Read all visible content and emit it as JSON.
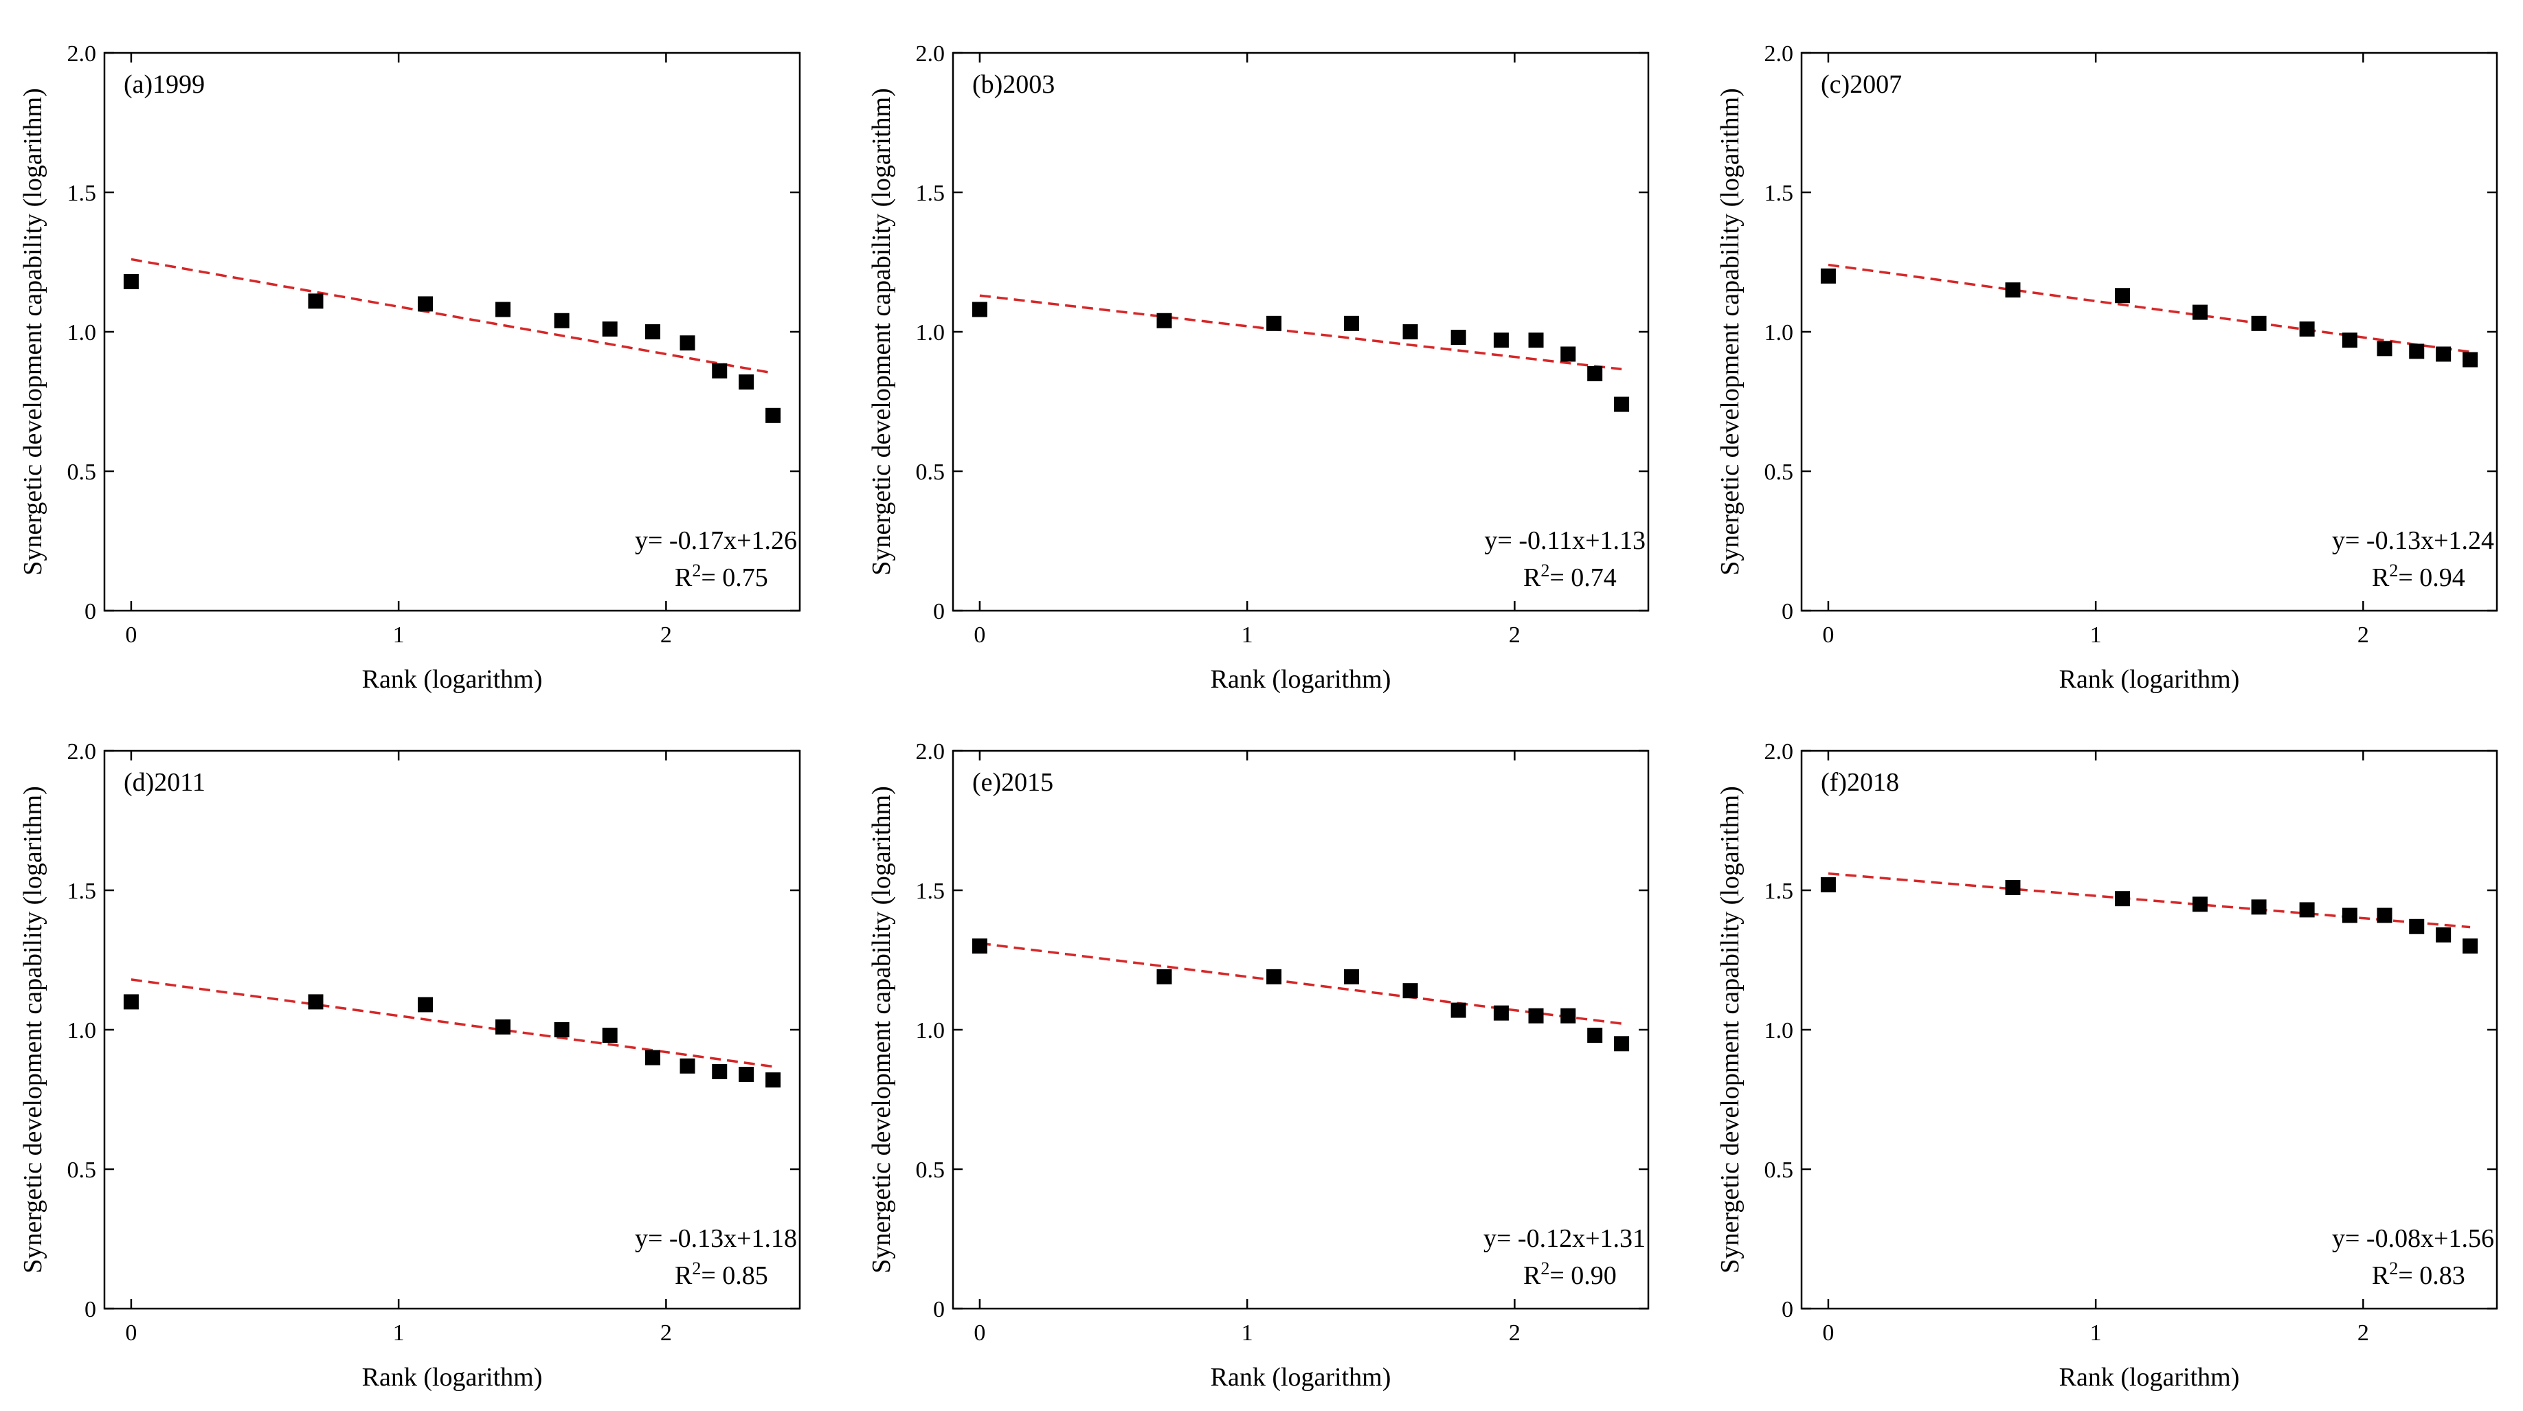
{
  "figure": {
    "x_axis_label": "Rank (logarithm)",
    "y_axis_label": "Synergetic development capability (logarithm)"
  },
  "chart_data": [
    {
      "type": "scatter",
      "panel_label": "(a)1999",
      "xlabel": "Rank (logarithm)",
      "ylabel": "Synergetic development capability (logarithm)",
      "xlim": [
        -0.1,
        2.5
      ],
      "ylim": [
        0,
        2.0
      ],
      "x_ticks": [
        0,
        1,
        2
      ],
      "y_ticks": [
        0,
        0.5,
        1.0,
        1.5,
        2.0
      ],
      "x_tick_labels": [
        "0",
        "1",
        "2"
      ],
      "y_tick_labels": [
        "0",
        "0.5",
        "1.0",
        "1.5",
        "2.0"
      ],
      "points_x": [
        0,
        0.69,
        1.1,
        1.39,
        1.61,
        1.79,
        1.95,
        2.08,
        2.2,
        2.3,
        2.4
      ],
      "points_y": [
        1.18,
        1.11,
        1.1,
        1.08,
        1.04,
        1.01,
        1.0,
        0.96,
        0.86,
        0.82,
        0.7
      ],
      "fit": {
        "slope": -0.17,
        "intercept": 1.26,
        "x_range": [
          0,
          2.4
        ]
      },
      "equation": "y= -0.17x+1.26",
      "r2_prefix": "R",
      "r2_sup": "2",
      "r2_value": "= 0.75",
      "fit_color": "#d62728",
      "marker_color": "#000000"
    },
    {
      "type": "scatter",
      "panel_label": "(b)2003",
      "xlabel": "Rank (logarithm)",
      "ylabel": "Synergetic development capability (logarithm)",
      "xlim": [
        -0.1,
        2.5
      ],
      "ylim": [
        0,
        2.0
      ],
      "x_ticks": [
        0,
        1,
        2
      ],
      "y_ticks": [
        0,
        0.5,
        1.0,
        1.5,
        2.0
      ],
      "x_tick_labels": [
        "0",
        "1",
        "2"
      ],
      "y_tick_labels": [
        "0",
        "0.5",
        "1.0",
        "1.5",
        "2.0"
      ],
      "points_x": [
        0,
        0.69,
        1.1,
        1.39,
        1.61,
        1.79,
        1.95,
        2.08,
        2.2,
        2.3,
        2.4
      ],
      "points_y": [
        1.08,
        1.04,
        1.03,
        1.03,
        1.0,
        0.98,
        0.97,
        0.97,
        0.92,
        0.85,
        0.74
      ],
      "fit": {
        "slope": -0.11,
        "intercept": 1.13,
        "x_range": [
          0,
          2.4
        ]
      },
      "equation": "y= -0.11x+1.13",
      "r2_prefix": "R",
      "r2_sup": "2",
      "r2_value": "= 0.74",
      "fit_color": "#d62728",
      "marker_color": "#000000"
    },
    {
      "type": "scatter",
      "panel_label": "(c)2007",
      "xlabel": "Rank (logarithm)",
      "ylabel": "Synergetic development capability (logarithm)",
      "xlim": [
        -0.1,
        2.5
      ],
      "ylim": [
        0,
        2.0
      ],
      "x_ticks": [
        0,
        1,
        2
      ],
      "y_ticks": [
        0,
        0.5,
        1.0,
        1.5,
        2.0
      ],
      "x_tick_labels": [
        "0",
        "1",
        "2"
      ],
      "y_tick_labels": [
        "0",
        "0.5",
        "1.0",
        "1.5",
        "2.0"
      ],
      "points_x": [
        0,
        0.69,
        1.1,
        1.39,
        1.61,
        1.79,
        1.95,
        2.08,
        2.2,
        2.3,
        2.4
      ],
      "points_y": [
        1.2,
        1.15,
        1.13,
        1.07,
        1.03,
        1.01,
        0.97,
        0.94,
        0.93,
        0.92,
        0.9
      ],
      "fit": {
        "slope": -0.13,
        "intercept": 1.24,
        "x_range": [
          0,
          2.4
        ]
      },
      "equation": "y= -0.13x+1.24",
      "r2_prefix": "R",
      "r2_sup": "2",
      "r2_value": "= 0.94",
      "fit_color": "#d62728",
      "marker_color": "#000000"
    },
    {
      "type": "scatter",
      "panel_label": "(d)2011",
      "xlabel": "Rank (logarithm)",
      "ylabel": "Synergetic development capability (logarithm)",
      "xlim": [
        -0.1,
        2.5
      ],
      "ylim": [
        0,
        2.0
      ],
      "x_ticks": [
        0,
        1,
        2
      ],
      "y_ticks": [
        0,
        0.5,
        1.0,
        1.5,
        2.0
      ],
      "x_tick_labels": [
        "0",
        "1",
        "2"
      ],
      "y_tick_labels": [
        "0",
        "0.5",
        "1.0",
        "1.5",
        "2.0"
      ],
      "points_x": [
        0,
        0.69,
        1.1,
        1.39,
        1.61,
        1.79,
        1.95,
        2.08,
        2.2,
        2.3,
        2.4
      ],
      "points_y": [
        1.1,
        1.1,
        1.09,
        1.01,
        1.0,
        0.98,
        0.9,
        0.87,
        0.85,
        0.84,
        0.82
      ],
      "fit": {
        "slope": -0.13,
        "intercept": 1.18,
        "x_range": [
          0,
          2.4
        ]
      },
      "equation": "y= -0.13x+1.18",
      "r2_prefix": "R",
      "r2_sup": "2",
      "r2_value": "= 0.85",
      "fit_color": "#d62728",
      "marker_color": "#000000"
    },
    {
      "type": "scatter",
      "panel_label": "(e)2015",
      "xlabel": "Rank (logarithm)",
      "ylabel": "Synergetic development capability (logarithm)",
      "xlim": [
        -0.1,
        2.5
      ],
      "ylim": [
        0,
        2.0
      ],
      "x_ticks": [
        0,
        1,
        2
      ],
      "y_ticks": [
        0,
        0.5,
        1.0,
        1.5,
        2.0
      ],
      "x_tick_labels": [
        "0",
        "1",
        "2"
      ],
      "y_tick_labels": [
        "0",
        "0.5",
        "1.0",
        "1.5",
        "2.0"
      ],
      "points_x": [
        0,
        0.69,
        1.1,
        1.39,
        1.61,
        1.79,
        1.95,
        2.08,
        2.2,
        2.3,
        2.4
      ],
      "points_y": [
        1.3,
        1.19,
        1.19,
        1.19,
        1.14,
        1.07,
        1.06,
        1.05,
        1.05,
        0.98,
        0.95
      ],
      "fit": {
        "slope": -0.12,
        "intercept": 1.31,
        "x_range": [
          0,
          2.4
        ]
      },
      "equation": "y= -0.12x+1.31",
      "r2_prefix": "R",
      "r2_sup": "2",
      "r2_value": "= 0.90",
      "fit_color": "#d62728",
      "marker_color": "#000000"
    },
    {
      "type": "scatter",
      "panel_label": "(f)2018",
      "xlabel": "Rank (logarithm)",
      "ylabel": "Synergetic development capability (logarithm)",
      "xlim": [
        -0.1,
        2.5
      ],
      "ylim": [
        0,
        2.0
      ],
      "x_ticks": [
        0,
        1,
        2
      ],
      "y_ticks": [
        0,
        0.5,
        1.0,
        1.5,
        2.0
      ],
      "x_tick_labels": [
        "0",
        "1",
        "2"
      ],
      "y_tick_labels": [
        "0",
        "0.5",
        "1.0",
        "1.5",
        "2.0"
      ],
      "points_x": [
        0,
        0.69,
        1.1,
        1.39,
        1.61,
        1.79,
        1.95,
        2.08,
        2.2,
        2.3,
        2.4
      ],
      "points_y": [
        1.52,
        1.51,
        1.47,
        1.45,
        1.44,
        1.43,
        1.41,
        1.41,
        1.37,
        1.34,
        1.3
      ],
      "fit": {
        "slope": -0.08,
        "intercept": 1.56,
        "x_range": [
          0,
          2.4
        ]
      },
      "equation": "y= -0.08x+1.56",
      "r2_prefix": "R",
      "r2_sup": "2",
      "r2_value": "= 0.83",
      "fit_color": "#d62728",
      "marker_color": "#000000"
    }
  ]
}
